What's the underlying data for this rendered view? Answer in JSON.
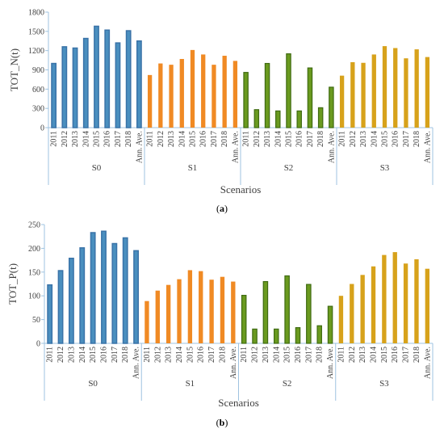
{
  "colors": {
    "S0_fill": "#4a8fbf",
    "S0_stroke": "#3a73a8",
    "S1_fill": "#f08a24",
    "S2_fill": "#6a9a1f",
    "S2_stroke": "#3f6b12",
    "S3_fill": "#d7a21b",
    "axis": "#9fc3e0"
  },
  "chart_data": [
    {
      "type": "bar",
      "panel": "(a)",
      "ylabel": "TOT_N(t)",
      "xlabel": "Scenarios",
      "ylim": [
        0,
        1800
      ],
      "yticks": [
        0,
        300,
        600,
        900,
        1200,
        1500,
        1800
      ],
      "categories": [
        "2011",
        "2012",
        "2013",
        "2014",
        "2015",
        "2016",
        "2017",
        "2018",
        "Ann. Ave."
      ],
      "groups": [
        "S0",
        "S1",
        "S2",
        "S3"
      ],
      "series": [
        {
          "name": "S0",
          "values": [
            1000,
            1260,
            1240,
            1390,
            1580,
            1520,
            1320,
            1510,
            1350
          ]
        },
        {
          "name": "S1",
          "values": [
            820,
            1000,
            980,
            1070,
            1210,
            1140,
            980,
            1120,
            1040
          ]
        },
        {
          "name": "S2",
          "values": [
            860,
            280,
            1000,
            260,
            1150,
            260,
            930,
            310,
            630
          ]
        },
        {
          "name": "S3",
          "values": [
            810,
            1020,
            1010,
            1140,
            1270,
            1240,
            1080,
            1220,
            1100
          ]
        }
      ]
    },
    {
      "type": "bar",
      "panel": "(b)",
      "ylabel": "TOT_P(t)",
      "xlabel": "Scenarios",
      "ylim": [
        0,
        250
      ],
      "yticks": [
        0,
        50,
        100,
        150,
        200,
        250
      ],
      "categories": [
        "2011",
        "2012",
        "2013",
        "2014",
        "2015",
        "2016",
        "2017",
        "2018",
        "Ann. Ave."
      ],
      "groups": [
        "S0",
        "S1",
        "S2",
        "S3"
      ],
      "series": [
        {
          "name": "S0",
          "values": [
            123,
            153,
            179,
            201,
            233,
            236,
            210,
            222,
            195
          ]
        },
        {
          "name": "S1",
          "values": [
            89,
            111,
            123,
            135,
            154,
            152,
            134,
            140,
            130
          ]
        },
        {
          "name": "S2",
          "values": [
            101,
            30,
            130,
            30,
            142,
            33,
            124,
            37,
            78
          ]
        },
        {
          "name": "S3",
          "values": [
            100,
            125,
            144,
            162,
            186,
            192,
            168,
            177,
            157
          ]
        }
      ]
    }
  ]
}
